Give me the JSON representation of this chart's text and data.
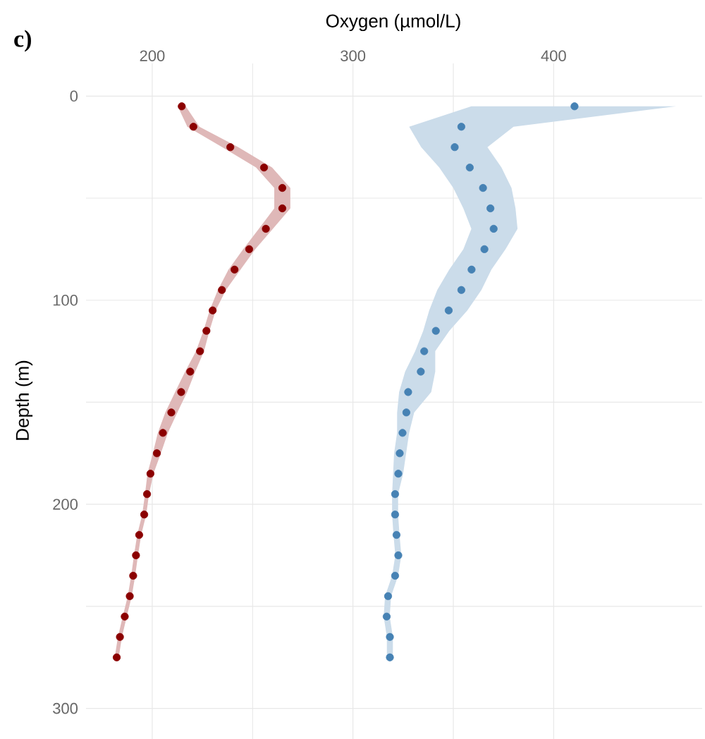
{
  "chart_data": {
    "type": "scatter",
    "title": "c)",
    "xlabel": "Oxygen (µmol/L)",
    "ylabel": "Depth (m)",
    "orientation": "horizontal",
    "marker": "circle",
    "grid": true,
    "xlim": [
      167,
      474
    ],
    "xticks": [
      200,
      300,
      400
    ],
    "ylim": [
      315,
      -16
    ],
    "yticks": [
      0,
      100,
      200,
      300
    ],
    "x": [
      5,
      15,
      25,
      35,
      45,
      55,
      65,
      75,
      85,
      95,
      105,
      115,
      125,
      135,
      145,
      155,
      165,
      175,
      185,
      195,
      205,
      215,
      225,
      235,
      245,
      255,
      265,
      275
    ],
    "series": [
      {
        "color": "#8b0000",
        "values": [
          214.7,
          220.5,
          238.9,
          255.7,
          264.8,
          264.8,
          256.6,
          248.3,
          241.0,
          234.7,
          230.1,
          227.0,
          223.8,
          218.9,
          214.4,
          209.5,
          205.3,
          202.3,
          199.1,
          197.4,
          196.0,
          193.5,
          191.9,
          190.5,
          188.8,
          186.3,
          183.9,
          182.3
        ],
        "lower": [
          212.7,
          217.5,
          234.9,
          251.7,
          260.8,
          260.8,
          253.1,
          245.3,
          238.0,
          232.7,
          228.6,
          225.5,
          221.8,
          216.4,
          211.4,
          206.5,
          202.8,
          200.3,
          197.6,
          196.4,
          195.0,
          192.5,
          190.9,
          189.5,
          187.8,
          185.3,
          182.9,
          181.3
        ],
        "upper": [
          216.7,
          223.5,
          242.9,
          259.7,
          268.8,
          268.8,
          260.1,
          251.3,
          244.0,
          236.7,
          231.6,
          228.5,
          225.8,
          221.4,
          217.4,
          212.5,
          207.8,
          204.3,
          200.6,
          198.4,
          197.0,
          194.5,
          192.9,
          191.5,
          189.8,
          187.3,
          184.9,
          183.3
        ]
      },
      {
        "color": "#4682b4",
        "values": [
          410.4,
          354.0,
          350.7,
          358.2,
          364.8,
          368.5,
          370.1,
          365.5,
          359.1,
          354.0,
          347.7,
          341.3,
          335.5,
          333.8,
          327.5,
          326.6,
          324.7,
          323.3,
          322.6,
          321.0,
          321.0,
          321.7,
          322.6,
          321.0,
          317.5,
          316.8,
          318.4,
          318.4
        ],
        "lower": [
          359,
          328,
          334,
          343,
          350,
          355,
          359,
          355,
          348,
          342,
          338,
          335,
          331,
          326,
          323,
          322,
          322,
          320.5,
          320,
          319.5,
          319.5,
          320.2,
          321.1,
          319.5,
          316,
          315.3,
          316.9,
          316.9
        ],
        "upper": [
          461,
          380,
          367,
          374,
          379,
          381,
          382,
          376,
          369,
          364,
          357,
          348,
          341,
          341,
          339,
          330.5,
          328,
          326.5,
          325,
          322.5,
          322.5,
          323.2,
          324.1,
          322.5,
          319,
          318.3,
          319.9,
          319.9
        ]
      }
    ]
  }
}
